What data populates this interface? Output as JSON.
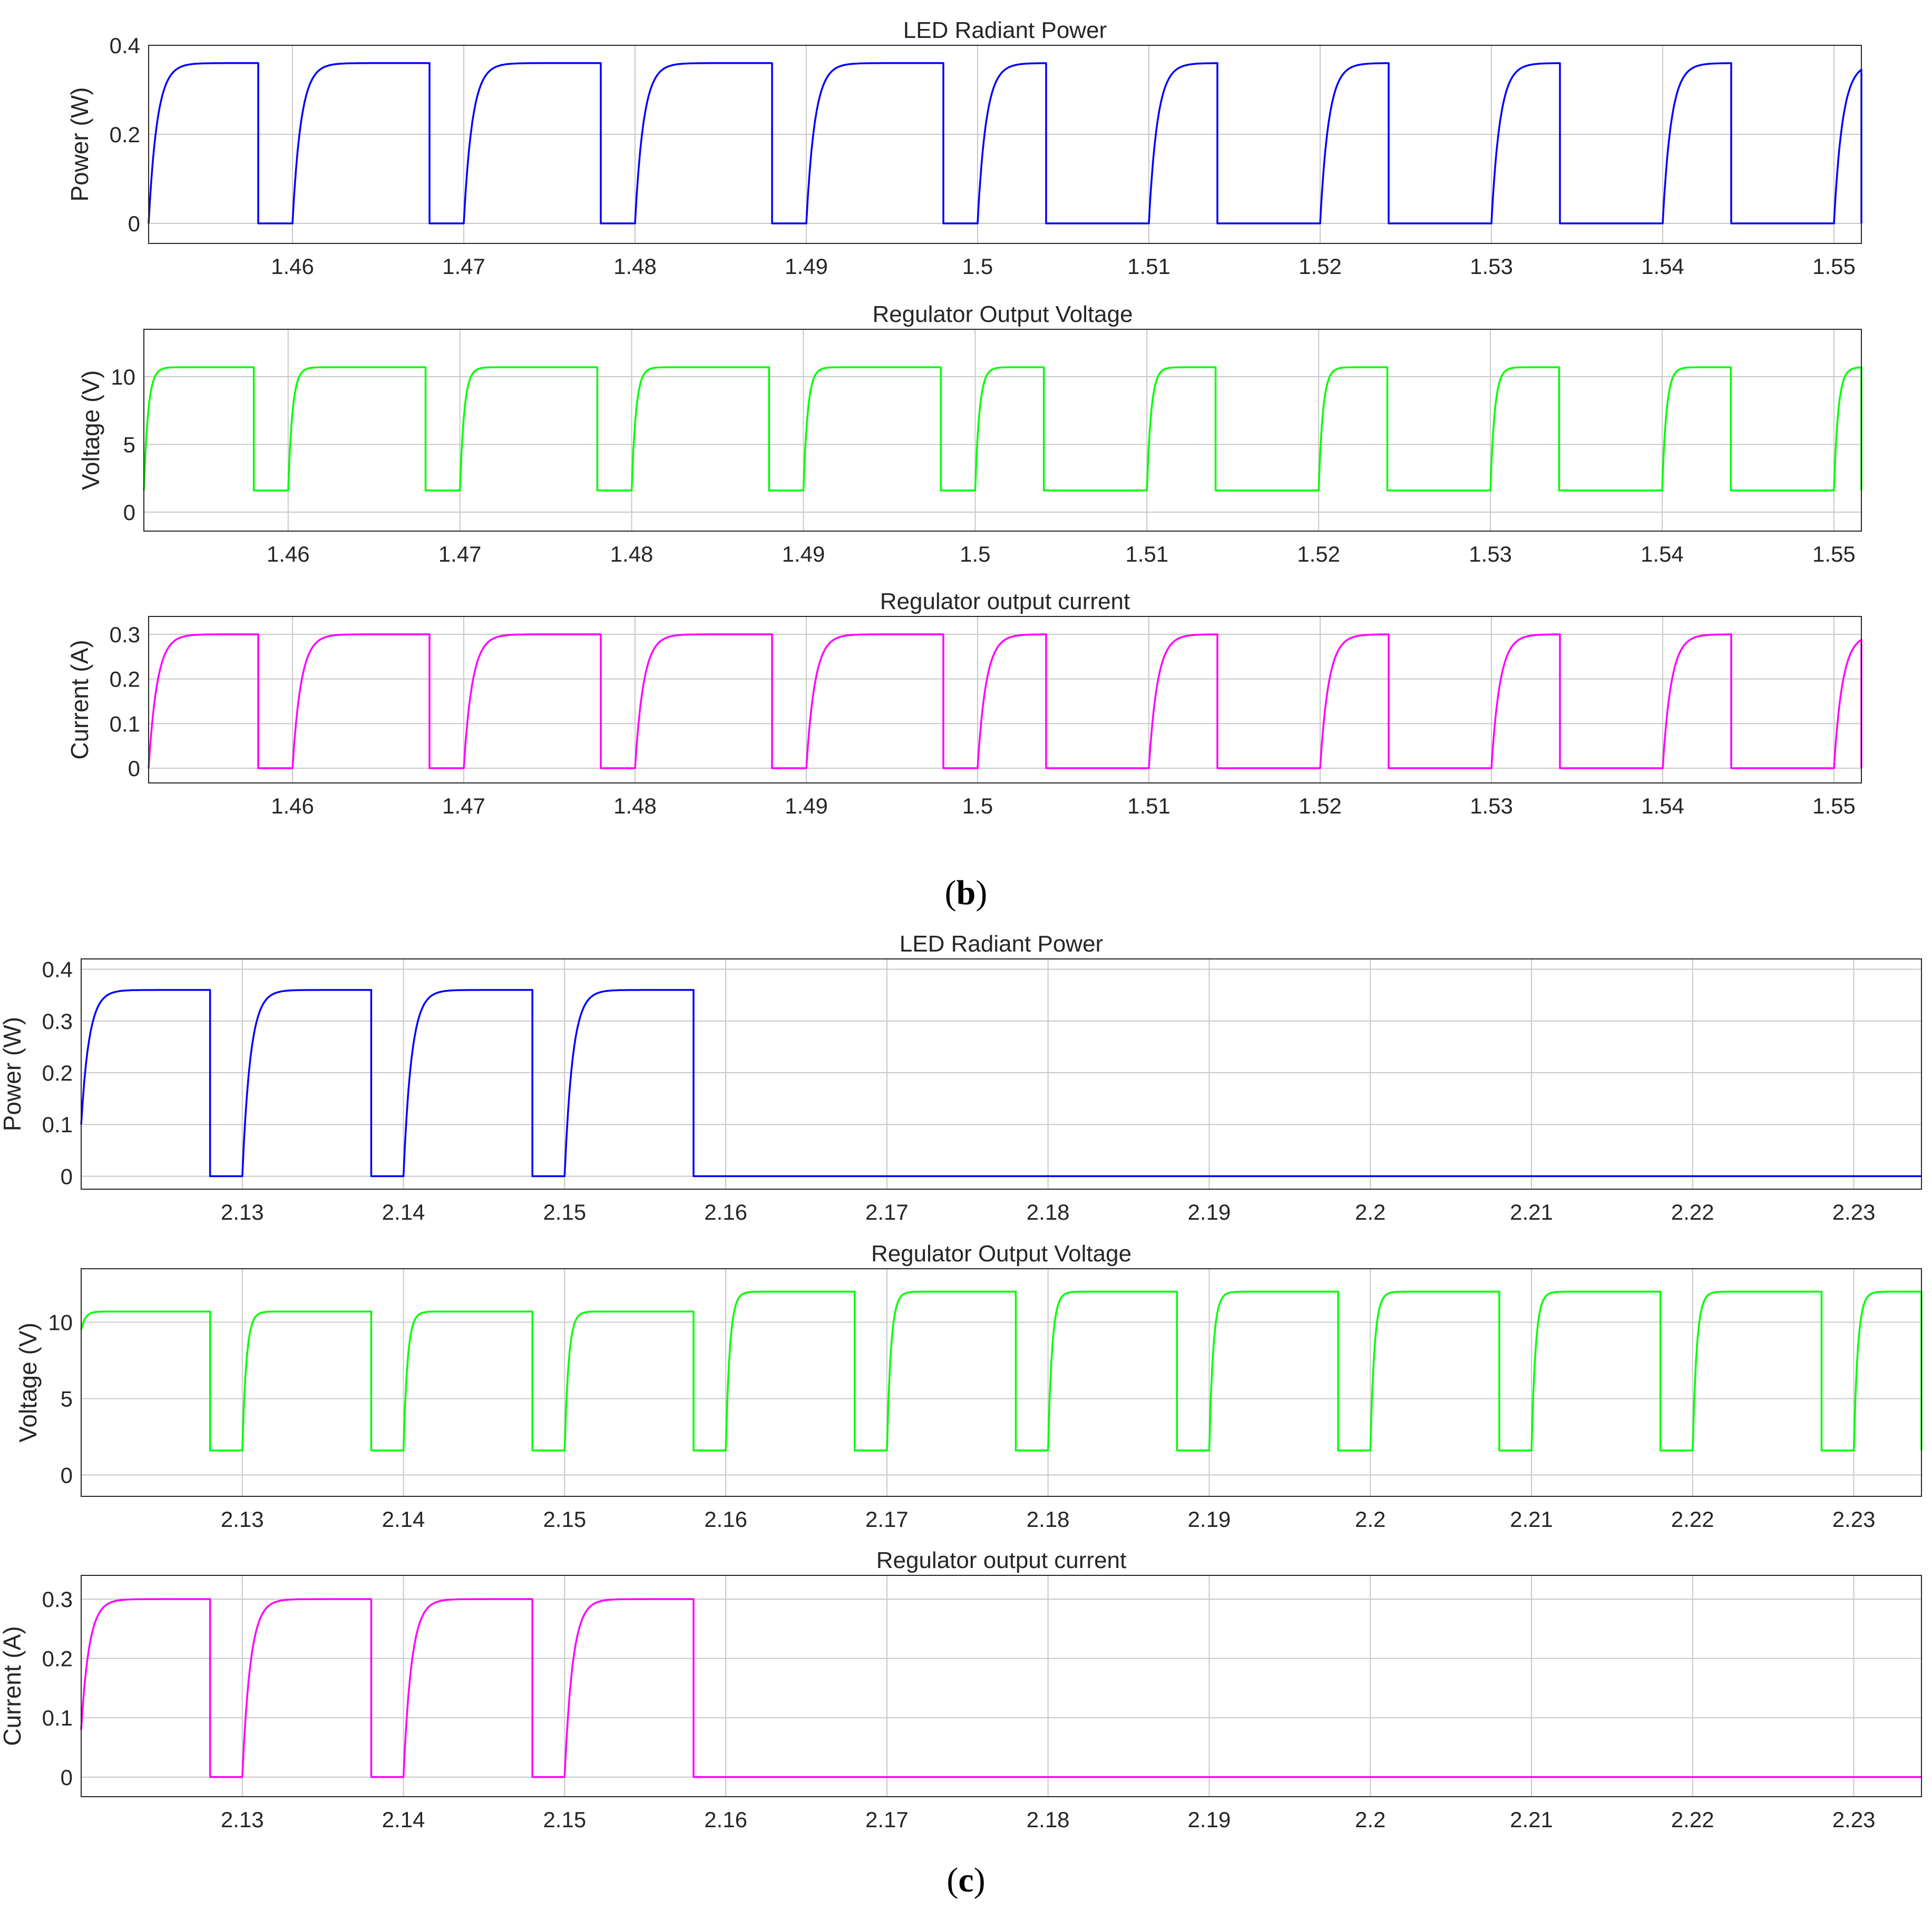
{
  "figures": [
    {
      "label_open": "(",
      "label_letter": "b",
      "label_close": ")"
    },
    {
      "label_open": "(",
      "label_letter": "c",
      "label_close": ")"
    }
  ],
  "colors": {
    "power": "#0000ff",
    "voltage": "#00ff00",
    "current": "#ff00ff"
  },
  "chart_data": [
    {
      "type": "line",
      "figure": "b",
      "title": "LED Radiant Power",
      "xlabel": "",
      "ylabel": "Power (W)",
      "xlim": [
        1.4516,
        1.5516
      ],
      "ylim": [
        -0.045,
        0.4
      ],
      "xticks": [
        1.46,
        1.47,
        1.48,
        1.49,
        1.5,
        1.51,
        1.52,
        1.53,
        1.54,
        1.55
      ],
      "xtick_labels": [
        "1.46",
        "1.47",
        "1.48",
        "1.49",
        "1.5",
        "1.51",
        "1.52",
        "1.53",
        "1.54",
        "1.55"
      ],
      "yticks": [
        0,
        0.2,
        0.4
      ],
      "ytick_labels": [
        "0",
        "0.2",
        "0.4"
      ],
      "grid": true,
      "color_key": "power",
      "series": [
        {
          "name": "LED Radiant Power",
          "high": 0.36,
          "low": 0,
          "rise_tau": 0.0005,
          "on_intervals": [
            [
              1.4516,
              1.458
            ],
            [
              1.46,
              1.468
            ],
            [
              1.47,
              1.478
            ],
            [
              1.48,
              1.488
            ],
            [
              1.49,
              1.498
            ],
            [
              1.5,
              1.504
            ],
            [
              1.51,
              1.514
            ],
            [
              1.52,
              1.524
            ],
            [
              1.53,
              1.534
            ],
            [
              1.54,
              1.544
            ],
            [
              1.55,
              1.5516
            ]
          ]
        }
      ]
    },
    {
      "type": "line",
      "figure": "b",
      "title": "Regulator Output Voltage",
      "xlabel": "",
      "ylabel": "Voltage (V)",
      "xlim": [
        1.4516,
        1.5516
      ],
      "ylim": [
        -1.4,
        13.5
      ],
      "xticks": [
        1.46,
        1.47,
        1.48,
        1.49,
        1.5,
        1.51,
        1.52,
        1.53,
        1.54,
        1.55
      ],
      "xtick_labels": [
        "1.46",
        "1.47",
        "1.48",
        "1.49",
        "1.5",
        "1.51",
        "1.52",
        "1.53",
        "1.54",
        "1.55"
      ],
      "yticks": [
        0,
        5,
        10
      ],
      "ytick_labels": [
        "0",
        "5",
        "10"
      ],
      "grid": true,
      "color_key": "voltage",
      "series": [
        {
          "name": "Regulator Output Voltage",
          "high": 10.7,
          "low": 1.6,
          "rise_tau": 0.00025,
          "on_intervals": [
            [
              1.4516,
              1.458
            ],
            [
              1.46,
              1.468
            ],
            [
              1.47,
              1.478
            ],
            [
              1.48,
              1.488
            ],
            [
              1.49,
              1.498
            ],
            [
              1.5,
              1.504
            ],
            [
              1.51,
              1.514
            ],
            [
              1.52,
              1.524
            ],
            [
              1.53,
              1.534
            ],
            [
              1.54,
              1.544
            ],
            [
              1.55,
              1.5516
            ]
          ]
        }
      ]
    },
    {
      "type": "line",
      "figure": "b",
      "title": "Regulator output current",
      "xlabel": "",
      "ylabel": "Current (A)",
      "xlim": [
        1.4516,
        1.5516
      ],
      "ylim": [
        -0.033,
        0.34
      ],
      "xticks": [
        1.46,
        1.47,
        1.48,
        1.49,
        1.5,
        1.51,
        1.52,
        1.53,
        1.54,
        1.55
      ],
      "xtick_labels": [
        "1.46",
        "1.47",
        "1.48",
        "1.49",
        "1.5",
        "1.51",
        "1.52",
        "1.53",
        "1.54",
        "1.55"
      ],
      "yticks": [
        0,
        0.1,
        0.2,
        0.3
      ],
      "ytick_labels": [
        "0",
        "0.1",
        "0.2",
        "0.3"
      ],
      "grid": true,
      "color_key": "current",
      "series": [
        {
          "name": "Regulator output current",
          "high": 0.3,
          "low": 0,
          "rise_tau": 0.0005,
          "on_intervals": [
            [
              1.4516,
              1.458
            ],
            [
              1.46,
              1.468
            ],
            [
              1.47,
              1.478
            ],
            [
              1.48,
              1.488
            ],
            [
              1.49,
              1.498
            ],
            [
              1.5,
              1.504
            ],
            [
              1.51,
              1.514
            ],
            [
              1.52,
              1.524
            ],
            [
              1.53,
              1.534
            ],
            [
              1.54,
              1.544
            ],
            [
              1.55,
              1.5516
            ]
          ]
        }
      ]
    },
    {
      "type": "line",
      "figure": "c",
      "title": "LED Radiant Power",
      "xlabel": "",
      "ylabel": "Power (W)",
      "xlim": [
        2.12,
        2.2342
      ],
      "ylim": [
        -0.025,
        0.42
      ],
      "xticks": [
        2.13,
        2.14,
        2.15,
        2.16,
        2.17,
        2.18,
        2.19,
        2.2,
        2.21,
        2.22,
        2.23
      ],
      "xtick_labels": [
        "2.13",
        "2.14",
        "2.15",
        "2.16",
        "2.17",
        "2.18",
        "2.19",
        "2.2",
        "2.21",
        "2.22",
        "2.23"
      ],
      "yticks": [
        0,
        0.1,
        0.2,
        0.3,
        0.4
      ],
      "ytick_labels": [
        "0",
        "0.1",
        "0.2",
        "0.3",
        "0.4"
      ],
      "grid": true,
      "color_key": "power",
      "series": [
        {
          "name": "LED Radiant Power",
          "high": 0.36,
          "low": 0,
          "rise_tau": 0.0005,
          "start_value": 0.1,
          "on_intervals": [
            [
              2.12,
              2.128
            ],
            [
              2.13,
              2.138
            ],
            [
              2.14,
              2.148
            ],
            [
              2.15,
              2.158
            ]
          ]
        }
      ]
    },
    {
      "type": "line",
      "figure": "c",
      "title": "Regulator Output Voltage",
      "xlabel": "",
      "ylabel": "Voltage (V)",
      "xlim": [
        2.12,
        2.2342
      ],
      "ylim": [
        -1.4,
        13.5
      ],
      "xticks": [
        2.13,
        2.14,
        2.15,
        2.16,
        2.17,
        2.18,
        2.19,
        2.2,
        2.21,
        2.22,
        2.23
      ],
      "xtick_labels": [
        "2.13",
        "2.14",
        "2.15",
        "2.16",
        "2.17",
        "2.18",
        "2.19",
        "2.2",
        "2.21",
        "2.22",
        "2.23"
      ],
      "yticks": [
        0,
        5,
        10
      ],
      "ytick_labels": [
        "0",
        "5",
        "10"
      ],
      "grid": true,
      "color_key": "voltage",
      "series": [
        {
          "name": "Regulator Output Voltage",
          "low": 1.6,
          "rise_tau": 0.00025,
          "start_value": 9.5,
          "on_intervals": [
            [
              2.12,
              2.128,
              10.7
            ],
            [
              2.13,
              2.138,
              10.7
            ],
            [
              2.14,
              2.148,
              10.7
            ],
            [
              2.15,
              2.158,
              10.7
            ],
            [
              2.16,
              2.168,
              12.0
            ],
            [
              2.17,
              2.178,
              12.0
            ],
            [
              2.18,
              2.188,
              12.0
            ],
            [
              2.19,
              2.198,
              12.0
            ],
            [
              2.2,
              2.208,
              12.0
            ],
            [
              2.21,
              2.218,
              12.0
            ],
            [
              2.22,
              2.228,
              12.0
            ],
            [
              2.23,
              2.2342,
              12.0
            ]
          ]
        }
      ]
    },
    {
      "type": "line",
      "figure": "c",
      "title": "Regulator output current",
      "xlabel": "",
      "ylabel": "Current (A)",
      "xlim": [
        2.12,
        2.2342
      ],
      "ylim": [
        -0.033,
        0.34
      ],
      "xticks": [
        2.13,
        2.14,
        2.15,
        2.16,
        2.17,
        2.18,
        2.19,
        2.2,
        2.21,
        2.22,
        2.23
      ],
      "xtick_labels": [
        "2.13",
        "2.14",
        "2.15",
        "2.16",
        "2.17",
        "2.18",
        "2.19",
        "2.2",
        "2.21",
        "2.22",
        "2.23"
      ],
      "yticks": [
        0,
        0.1,
        0.2,
        0.3
      ],
      "ytick_labels": [
        "0",
        "0.1",
        "0.2",
        "0.3"
      ],
      "grid": true,
      "color_key": "current",
      "series": [
        {
          "name": "Regulator output current",
          "high": 0.3,
          "low": 0,
          "rise_tau": 0.0005,
          "start_value": 0.08,
          "on_intervals": [
            [
              2.12,
              2.128
            ],
            [
              2.13,
              2.138
            ],
            [
              2.14,
              2.148
            ],
            [
              2.15,
              2.158
            ]
          ]
        }
      ]
    }
  ]
}
